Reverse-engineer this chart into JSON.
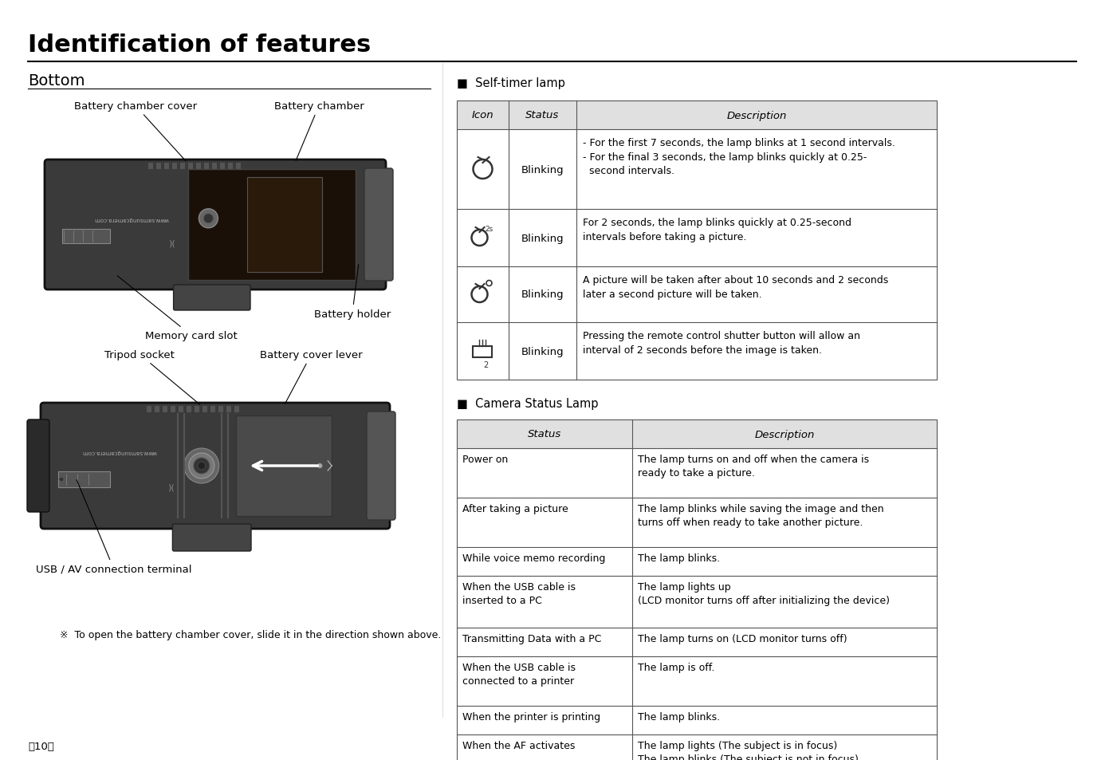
{
  "title": "Identification of features",
  "section_left": "Bottom",
  "bg_color": "#ffffff",
  "text_color": "#000000",
  "page_number": "【10】",
  "self_timer_title": "■  Self-timer lamp",
  "self_timer_headers": [
    "Icon",
    "Status",
    "Description"
  ],
  "row_descs": [
    "- For the first 7 seconds, the lamp blinks at 1 second intervals.\n- For the final 3 seconds, the lamp blinks quickly at 0.25-\n  second intervals.",
    "For 2 seconds, the lamp blinks quickly at 0.25-second\nintervals before taking a picture.",
    "A picture will be taken after about 10 seconds and 2 seconds\nlater a second picture will be taken.",
    "Pressing the remote control shutter button will allow an\ninterval of 2 seconds before the image is taken."
  ],
  "camera_status_title": "■  Camera Status Lamp",
  "camera_status_headers": [
    "Status",
    "Description"
  ],
  "camera_status_rows": [
    {
      "status": "Power on",
      "desc": "The lamp turns on and off when the camera is\nready to take a picture."
    },
    {
      "status": "After taking a picture",
      "desc": "The lamp blinks while saving the image and then\nturns off when ready to take another picture."
    },
    {
      "status": "While voice memo recording",
      "desc": "The lamp blinks."
    },
    {
      "status": "When the USB cable is\ninserted to a PC",
      "desc": "The lamp lights up\n(LCD monitor turns off after initializing the device)"
    },
    {
      "status": "Transmitting Data with a PC",
      "desc": "The lamp turns on (LCD monitor turns off)"
    },
    {
      "status": "When the USB cable is\nconnected to a printer",
      "desc": "The lamp is off."
    },
    {
      "status": "When the printer is printing",
      "desc": "The lamp blinks."
    },
    {
      "status": "When the AF activates",
      "desc": "The lamp lights (The subject is in focus)\nThe lamp blinks (The subject is not in focus)"
    }
  ],
  "note_text": "※  To open the battery chamber cover, slide it in the direction shown above."
}
